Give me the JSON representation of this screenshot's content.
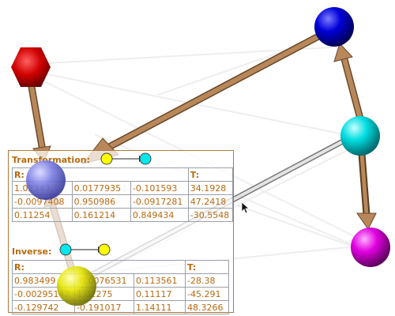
{
  "transform": {
    "title": "Transformation:",
    "r_label": "R:",
    "t_label": "T:",
    "rows": [
      [
        "1.02343",
        "0.0177935",
        "-0.101593",
        "34.1928"
      ],
      [
        "-0.0097408",
        "0.950986",
        "-0.0917281",
        "47.2418"
      ],
      [
        "0.11254",
        "0.161214",
        "0.849434",
        "-30.5548"
      ]
    ]
  },
  "inverse": {
    "title": "Inverse:",
    "r_label": "R:",
    "t_label": "T:",
    "rows": [
      [
        "0.983499",
        "-0.0076531",
        "0.113561",
        "-28.38"
      ],
      [
        "-0.00295142",
        "1.02275",
        "0.11117",
        "-45.291"
      ],
      [
        "-0.129742",
        "-0.191017",
        "1.14111",
        "48.3266"
      ]
    ]
  },
  "colors": {
    "node_red": "#cc0000",
    "node_blue": "#0000cc",
    "node_cyan": "#00d8dc",
    "node_magenta": "#dd00dd",
    "node_periwinkle": "#7b7fe0",
    "node_yellow": "#e0e000",
    "edge_tan": "#b8875a",
    "edge_gray": "#c4c4c4",
    "panel_text": "#b86a10"
  }
}
